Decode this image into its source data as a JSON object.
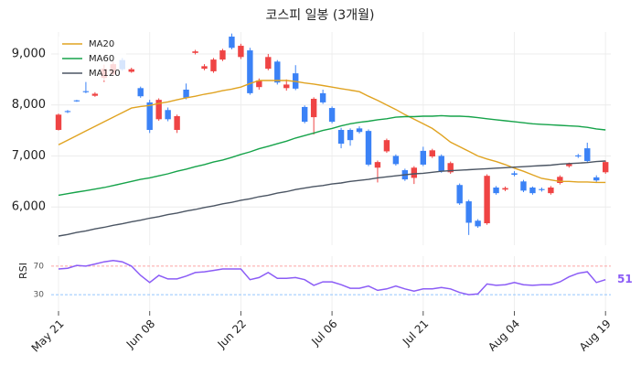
{
  "chart_data": [
    {
      "type": "candlestick",
      "title": "코스피 일봉 (3개월)",
      "categories": [
        "May 21",
        null,
        null,
        null,
        null,
        null,
        null,
        null,
        null,
        null,
        "Jun 08",
        null,
        null,
        null,
        null,
        null,
        null,
        null,
        null,
        null,
        "Jun 22",
        null,
        null,
        null,
        null,
        null,
        null,
        null,
        null,
        null,
        "Jul 06",
        null,
        null,
        null,
        null,
        null,
        null,
        null,
        null,
        null,
        "Jul 21",
        null,
        null,
        null,
        null,
        null,
        null,
        null,
        null,
        null,
        "Aug 04",
        null,
        null,
        null,
        null,
        null,
        null,
        null,
        null,
        null,
        "Aug 19"
      ],
      "open": [
        7510,
        7880,
        8090,
        8270,
        8180,
        8530,
        8600,
        8880,
        8650,
        8330,
        8050,
        7720,
        7900,
        7510,
        8300,
        9020,
        8710,
        8660,
        8890,
        9340,
        8940,
        9070,
        8350,
        8710,
        8850,
        8330,
        8620,
        7960,
        7760,
        8230,
        7940,
        7510,
        7510,
        7540,
        7490,
        6770,
        7090,
        7000,
        6720,
        6570,
        7100,
        6990,
        7000,
        6680,
        6430,
        6110,
        5730,
        5680,
        6380,
        6340,
        6660,
        6500,
        6380,
        6350,
        6270,
        6470,
        6800,
        7010,
        7150,
        6580,
        6680
      ],
      "high": [
        7830,
        7900,
        8100,
        8450,
        8250,
        8790,
        8850,
        8920,
        8730,
        8360,
        8100,
        8130,
        7950,
        7810,
        8420,
        9080,
        8800,
        8920,
        9100,
        9400,
        9200,
        9120,
        8520,
        9000,
        8880,
        8500,
        8780,
        7990,
        8150,
        8300,
        7970,
        7550,
        7540,
        7580,
        7520,
        6910,
        7340,
        7030,
        6750,
        6800,
        7180,
        7140,
        7030,
        6890,
        6460,
        6140,
        5760,
        6640,
        6410,
        6400,
        6700,
        6530,
        6400,
        6380,
        6410,
        6620,
        6870,
        7040,
        7260,
        6620,
        6910
      ],
      "low": [
        7500,
        7840,
        8060,
        8230,
        8160,
        8450,
        8570,
        8670,
        8630,
        8140,
        7450,
        7690,
        7680,
        7450,
        8110,
        8990,
        8680,
        8630,
        8860,
        9090,
        8900,
        8200,
        8300,
        8680,
        8400,
        8280,
        8290,
        7640,
        7420,
        8020,
        7640,
        7150,
        7200,
        7440,
        6800,
        6480,
        7060,
        6810,
        6510,
        6450,
        6800,
        6960,
        6670,
        6650,
        6040,
        5450,
        5590,
        5650,
        6240,
        6310,
        6600,
        6290,
        6240,
        6300,
        6240,
        6440,
        6770,
        6960,
        6870,
        6490,
        6650
      ],
      "close": [
        7810,
        7860,
        8070,
        8250,
        8220,
        8710,
        8800,
        8700,
        8700,
        8170,
        7510,
        8100,
        7720,
        7780,
        8140,
        9050,
        8760,
        8890,
        9070,
        9120,
        9160,
        8230,
        8480,
        8940,
        8440,
        8400,
        8320,
        7670,
        8120,
        8050,
        7670,
        7240,
        7310,
        7470,
        6830,
        6880,
        7310,
        6840,
        6540,
        6770,
        6830,
        7110,
        6700,
        6860,
        6070,
        5690,
        5620,
        6610,
        6270,
        6370,
        6630,
        6320,
        6270,
        6330,
        6380,
        6590,
        6840,
        6990,
        6900,
        6520,
        6880
      ],
      "up_color": "#ef4444",
      "down_color": "#3b82f6",
      "series": [
        {
          "name": "MA20",
          "color": "#e0a321",
          "values": [
            7220,
            7310,
            7400,
            7490,
            7580,
            7670,
            7760,
            7850,
            7940,
            7970,
            7990,
            8030,
            8060,
            8100,
            8140,
            8170,
            8210,
            8240,
            8280,
            8310,
            8350,
            8420,
            8480,
            8480,
            8480,
            8480,
            8460,
            8430,
            8410,
            8380,
            8350,
            8320,
            8290,
            8260,
            8170,
            8090,
            8000,
            7910,
            7810,
            7720,
            7630,
            7540,
            7410,
            7270,
            7180,
            7090,
            7000,
            6940,
            6890,
            6830,
            6760,
            6700,
            6630,
            6560,
            6530,
            6500,
            6500,
            6490,
            6490,
            6480,
            6480
          ]
        },
        {
          "name": "MA60",
          "color": "#16a34a",
          "values": [
            6230,
            6260,
            6290,
            6320,
            6350,
            6380,
            6420,
            6460,
            6500,
            6540,
            6570,
            6610,
            6650,
            6700,
            6740,
            6790,
            6830,
            6880,
            6920,
            6970,
            7030,
            7080,
            7140,
            7190,
            7240,
            7290,
            7350,
            7400,
            7450,
            7500,
            7540,
            7590,
            7630,
            7660,
            7680,
            7710,
            7730,
            7760,
            7770,
            7770,
            7780,
            7780,
            7790,
            7780,
            7780,
            7770,
            7750,
            7730,
            7710,
            7690,
            7670,
            7650,
            7630,
            7620,
            7610,
            7600,
            7590,
            7580,
            7560,
            7530,
            7510
          ]
        },
        {
          "name": "MA120",
          "color": "#4b5563",
          "values": [
            5430,
            5460,
            5500,
            5530,
            5570,
            5600,
            5640,
            5670,
            5710,
            5740,
            5780,
            5810,
            5850,
            5880,
            5920,
            5950,
            5990,
            6020,
            6060,
            6090,
            6130,
            6160,
            6200,
            6230,
            6270,
            6300,
            6340,
            6370,
            6400,
            6420,
            6450,
            6470,
            6500,
            6520,
            6540,
            6570,
            6590,
            6610,
            6630,
            6650,
            6660,
            6680,
            6700,
            6710,
            6720,
            6730,
            6740,
            6750,
            6760,
            6770,
            6780,
            6790,
            6800,
            6810,
            6820,
            6840,
            6850,
            6860,
            6870,
            6890,
            6900
          ]
        }
      ],
      "ylim": [
        5250,
        9430
      ],
      "yticks": [
        {
          "value": 6000,
          "label": "6,000"
        },
        {
          "value": 7000,
          "label": "7,000"
        },
        {
          "value": 8000,
          "label": "8,000"
        },
        {
          "value": 9000,
          "label": "9,000"
        }
      ],
      "grid": true,
      "legend": "upper left"
    },
    {
      "type": "line",
      "ylabel": "RSI",
      "color": "#8b5cf6",
      "values": [
        66,
        67,
        71,
        70,
        73,
        76,
        78,
        76,
        70,
        57,
        47,
        57,
        52,
        52,
        56,
        61,
        62,
        64,
        66,
        66,
        66,
        51,
        54,
        61,
        53,
        53,
        54,
        51,
        43,
        48,
        48,
        44,
        39,
        39,
        42,
        36,
        38,
        42,
        38,
        35,
        38,
        38,
        40,
        38,
        33,
        30,
        31,
        45,
        43,
        44,
        47,
        44,
        43,
        44,
        44,
        48,
        55,
        60,
        62,
        47,
        51
      ],
      "ylim": [
        7,
        84
      ],
      "yticks": [
        30,
        70
      ],
      "ytick_line_colors": [
        "#93c5fd",
        "#fca5a5"
      ]
    }
  ]
}
